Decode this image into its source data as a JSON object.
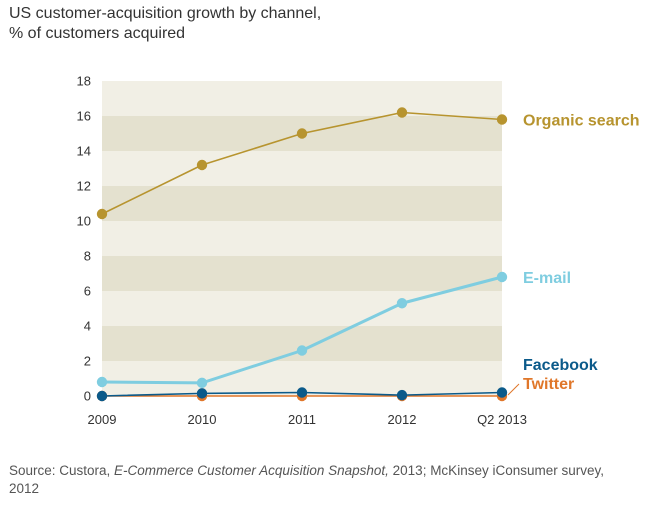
{
  "title": {
    "line1": "US customer-acquisition growth by channel,",
    "line2": "% of customers acquired"
  },
  "source": {
    "prefix": "Source: Custora, ",
    "italic": "E-Commerce Customer Acquisition Snapshot,",
    "suffix": " 2013; McKinsey iConsumer survey, 2012"
  },
  "chart_data": {
    "type": "line",
    "categories": [
      "2009",
      "2010",
      "2011",
      "2012",
      "Q2 2013"
    ],
    "ylim": [
      0,
      18
    ],
    "yticks": [
      0,
      2,
      4,
      6,
      8,
      10,
      12,
      14,
      16,
      18
    ],
    "grid": "alternating horizontal bands",
    "legend": "inline labels at right end of series",
    "series": [
      {
        "name": "Organic search",
        "color": "#b7942f",
        "values": [
          10.4,
          13.2,
          15.0,
          16.2,
          15.8
        ]
      },
      {
        "name": "E-mail",
        "color": "#7fcde0",
        "values": [
          0.8,
          0.75,
          2.6,
          5.3,
          6.8
        ]
      },
      {
        "name": "Facebook",
        "color": "#0b5a8a",
        "values": [
          0.0,
          0.15,
          0.2,
          0.05,
          0.2
        ]
      },
      {
        "name": "Twitter",
        "color": "#e0772a",
        "values": [
          0.0,
          0.0,
          0.0,
          0.0,
          0.0
        ]
      }
    ],
    "band_colors": [
      "#f1efe5",
      "#e4e1cf"
    ]
  }
}
